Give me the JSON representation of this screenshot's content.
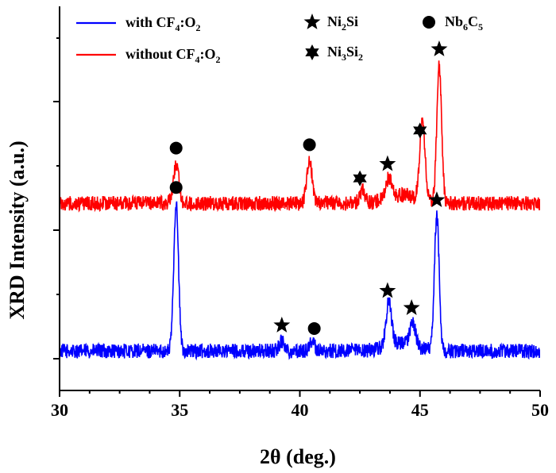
{
  "chart_data": {
    "type": "line",
    "xlabel": "2θ (deg.)",
    "ylabel": "XRD Intensity (a.u.)",
    "xlim": [
      30,
      50
    ],
    "xticks": [
      "30",
      "35",
      "40",
      "45",
      "50"
    ],
    "y_tick_labels": "none",
    "series": [
      {
        "name": "with CF4:O2",
        "name_parts": [
          "with CF",
          "4",
          ":O",
          "2"
        ],
        "color": "#0000ff",
        "peaks": [
          {
            "x": 34.85,
            "height": 0.45
          },
          {
            "x": 39.25,
            "height": 0.03
          },
          {
            "x": 40.5,
            "height": 0.03
          },
          {
            "x": 43.7,
            "height": 0.13
          },
          {
            "x": 44.7,
            "height": 0.07
          },
          {
            "x": 45.7,
            "height": 0.41
          }
        ],
        "baseline": 0.0
      },
      {
        "name": "without CF4:O2",
        "name_parts": [
          "without CF",
          "4",
          ":O",
          "2"
        ],
        "color": "#ff0000",
        "peaks": [
          {
            "x": 34.85,
            "height": 0.12
          },
          {
            "x": 40.4,
            "height": 0.13
          },
          {
            "x": 42.6,
            "height": 0.04
          },
          {
            "x": 43.7,
            "height": 0.06
          },
          {
            "x": 45.1,
            "height": 0.24
          },
          {
            "x": 45.8,
            "height": 0.42
          }
        ],
        "baseline": 0.45
      }
    ],
    "legend": {
      "position": "top-left",
      "phases": [
        {
          "name": "Ni2Si",
          "parts": [
            "Ni",
            "2",
            "Si"
          ],
          "marker": "star5"
        },
        {
          "name": "Nb6C5",
          "parts": [
            "Nb",
            "6",
            "C",
            "5"
          ],
          "marker": "circle"
        },
        {
          "name": "Ni3Si2",
          "parts": [
            "Ni",
            "3",
            "Si",
            "2"
          ],
          "marker": "star6"
        }
      ]
    },
    "annotations": [
      {
        "series": "with CF4:O2",
        "x": 34.85,
        "marker": "circle"
      },
      {
        "series": "with CF4:O2",
        "x": 39.25,
        "marker": "star5"
      },
      {
        "series": "with CF4:O2",
        "x": 40.6,
        "marker": "circle"
      },
      {
        "series": "with CF4:O2",
        "x": 43.65,
        "marker": "star5"
      },
      {
        "series": "with CF4:O2",
        "x": 44.65,
        "marker": "star5"
      },
      {
        "series": "with CF4:O2",
        "x": 45.7,
        "marker": "star5"
      },
      {
        "series": "without CF4:O2",
        "x": 34.85,
        "marker": "circle"
      },
      {
        "series": "without CF4:O2",
        "x": 40.4,
        "marker": "circle"
      },
      {
        "series": "without CF4:O2",
        "x": 42.5,
        "marker": "star6"
      },
      {
        "series": "without CF4:O2",
        "x": 43.65,
        "marker": "star5"
      },
      {
        "series": "without CF4:O2",
        "x": 45.0,
        "marker": "star6"
      },
      {
        "series": "without CF4:O2",
        "x": 45.8,
        "marker": "star5"
      }
    ]
  }
}
